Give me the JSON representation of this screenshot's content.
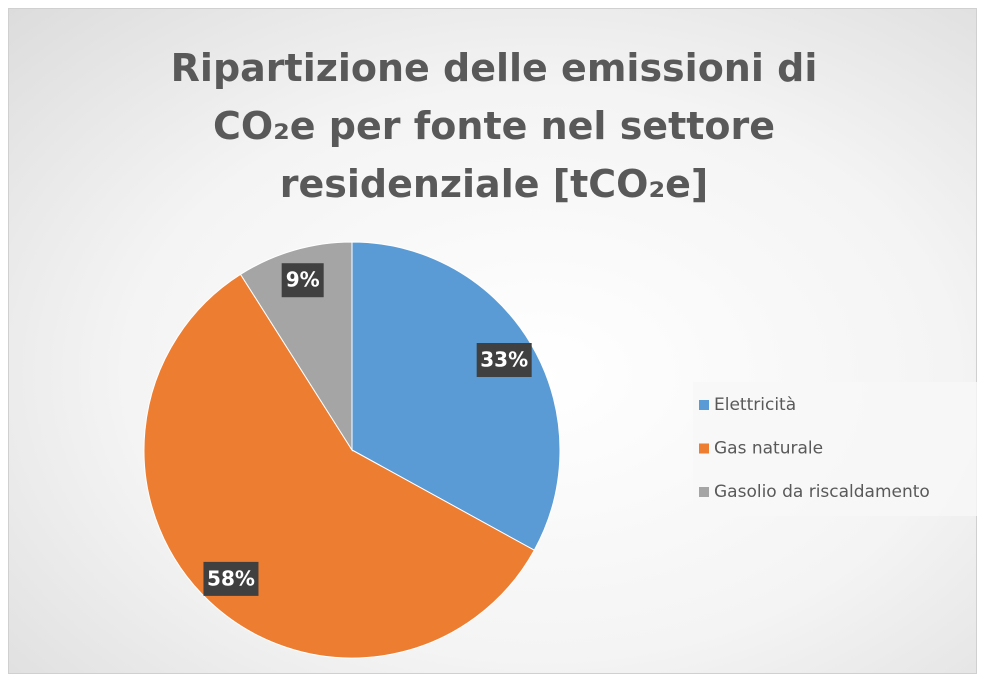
{
  "chart_data": {
    "type": "pie",
    "title": "Ripartizione delle emissioni di CO₂e per fonte nel settore residenziale [tCO₂e]",
    "categories": [
      "Elettricità",
      "Gas naturale",
      "Gasolio da riscaldamento"
    ],
    "values": [
      33,
      58,
      9
    ],
    "value_labels": [
      "33%",
      "58%",
      "9%"
    ],
    "colors": [
      "#5b9bd5",
      "#ed7d31",
      "#a5a5a5"
    ],
    "legend": "right"
  }
}
